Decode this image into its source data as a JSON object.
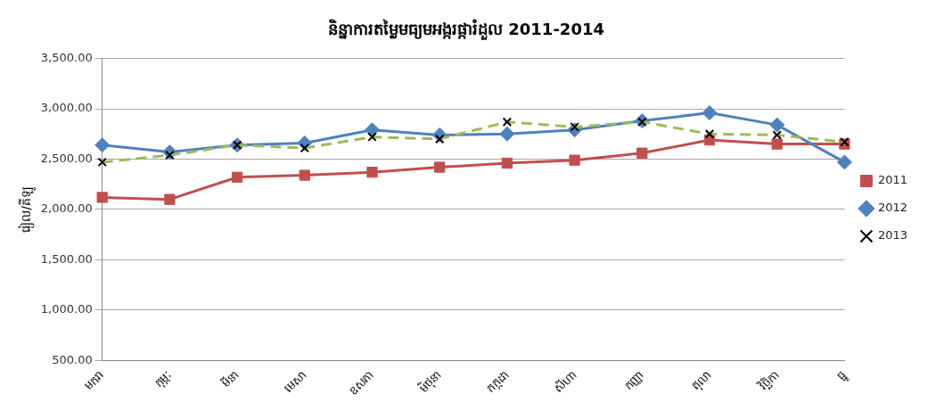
{
  "chart_data": {
    "type": "line",
    "title": "និន្នាការតម្លៃមធ្យមអង្ករផ្ការំដួល 2011-2014",
    "ylabel": "រៀល/គីឡូ",
    "categories": [
      "មករា",
      "កុម្ភៈ",
      "មីនា",
      "មេសា",
      "ឧសភា",
      "មិថុនា",
      "កក្កដា",
      "សីហា",
      "កញ្ញា",
      "តុលា",
      "វិច្ឆិកា",
      "ធ្នូ"
    ],
    "series": [
      {
        "name": "2011",
        "color": "#c0504d",
        "marker": "square",
        "line_style": "solid",
        "values": [
          2120,
          2100,
          2320,
          2340,
          2370,
          2420,
          2460,
          2490,
          2560,
          2690,
          2650,
          2650
        ]
      },
      {
        "name": "2012",
        "color": "#4f81bd",
        "marker": "diamond",
        "line_style": "solid",
        "values": [
          2640,
          2570,
          2640,
          2660,
          2790,
          2740,
          2750,
          2790,
          2880,
          2960,
          2840,
          2470
        ]
      },
      {
        "name": "2013",
        "color": "#9bbb59",
        "marker": "cross",
        "line_style": "dashed",
        "values": [
          2470,
          2540,
          2640,
          2610,
          2720,
          2700,
          2870,
          2820,
          2870,
          2750,
          2740,
          2670
        ]
      }
    ],
    "ylim": [
      500,
      3500
    ],
    "yticks": [
      {
        "value": 500,
        "label": "500.00"
      },
      {
        "value": 1000,
        "label": "1,000.00"
      },
      {
        "value": 1500,
        "label": "1,500.00"
      },
      {
        "value": 2000,
        "label": "2,000.00"
      },
      {
        "value": 2500,
        "label": "2,500.00"
      },
      {
        "value": 3000,
        "label": "3,000.00"
      },
      {
        "value": 3500,
        "label": "3,500.00"
      }
    ],
    "grid": "y",
    "legend": "right"
  }
}
